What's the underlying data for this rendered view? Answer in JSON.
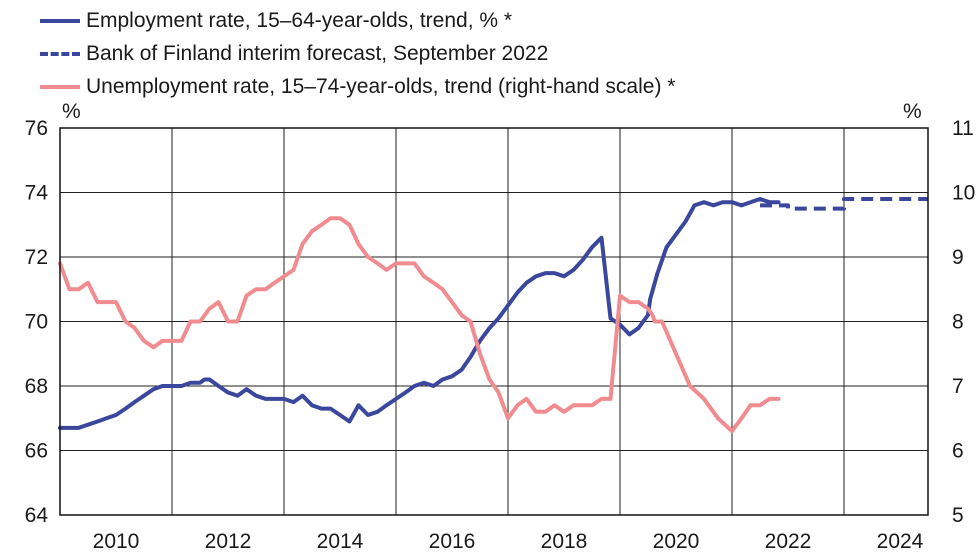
{
  "chart_data": {
    "type": "line",
    "legend": [
      {
        "label": "Employment rate, 15–64-year-olds, trend, % *",
        "color": "#3b479c",
        "style": "solid"
      },
      {
        "label": "Bank of Finland interim forecast, September 2022",
        "color": "#3b479c",
        "style": "dashed"
      },
      {
        "label": "Unemployment rate, 15–74-year-olds, trend (right-hand scale) *",
        "color": "#f08c8f",
        "style": "solid"
      }
    ],
    "left_unit": "%",
    "right_unit": "%",
    "xlim": [
      2009.5,
      2025.0
    ],
    "x_ticks": [
      "2010",
      "2012",
      "2014",
      "2016",
      "2018",
      "2020",
      "2022",
      "2024"
    ],
    "y_left_lim": [
      64,
      76
    ],
    "y_left_ticks": [
      "64",
      "66",
      "68",
      "70",
      "72",
      "74",
      "76"
    ],
    "y_right_lim": [
      5,
      11
    ],
    "y_right_ticks": [
      "5",
      "6",
      "7",
      "8",
      "9",
      "10",
      "11"
    ],
    "grid": true,
    "series": [
      {
        "name": "Employment rate, 15–64-year-olds, trend, % *",
        "axis": "left",
        "color": "#3b479c",
        "style": "solid",
        "x": [
          2009.5,
          2009.83,
          2010.0,
          2010.17,
          2010.33,
          2010.5,
          2010.67,
          2010.83,
          2011.0,
          2011.17,
          2011.33,
          2011.5,
          2011.67,
          2011.83,
          2012.0,
          2012.08,
          2012.17,
          2012.25,
          2012.33,
          2012.5,
          2012.67,
          2012.83,
          2013.0,
          2013.17,
          2013.33,
          2013.5,
          2013.67,
          2013.83,
          2014.0,
          2014.17,
          2014.33,
          2014.5,
          2014.67,
          2014.83,
          2015.0,
          2015.17,
          2015.33,
          2015.5,
          2015.67,
          2015.83,
          2016.0,
          2016.17,
          2016.33,
          2016.5,
          2016.67,
          2016.83,
          2017.0,
          2017.17,
          2017.33,
          2017.5,
          2017.67,
          2017.83,
          2018.0,
          2018.17,
          2018.33,
          2018.5,
          2018.67,
          2018.83,
          2019.0,
          2019.17,
          2019.33,
          2019.5,
          2019.67,
          2019.83,
          2020.0,
          2020.04,
          2020.17,
          2020.33,
          2020.5,
          2020.67,
          2020.83,
          2021.0,
          2021.17,
          2021.33,
          2021.5,
          2021.67,
          2021.83,
          2022.0,
          2022.17,
          2022.33
        ],
        "y": [
          66.7,
          66.7,
          66.8,
          66.9,
          67.0,
          67.1,
          67.3,
          67.5,
          67.7,
          67.9,
          68.0,
          68.0,
          68.0,
          68.1,
          68.1,
          68.2,
          68.2,
          68.1,
          68.0,
          67.8,
          67.7,
          67.9,
          67.7,
          67.6,
          67.6,
          67.6,
          67.5,
          67.7,
          67.4,
          67.3,
          67.3,
          67.1,
          66.9,
          67.4,
          67.1,
          67.2,
          67.4,
          67.6,
          67.8,
          68.0,
          68.1,
          68.0,
          68.2,
          68.3,
          68.5,
          68.9,
          69.4,
          69.8,
          70.1,
          70.5,
          70.9,
          71.2,
          71.4,
          71.5,
          71.5,
          71.4,
          71.6,
          71.9,
          72.3,
          72.6,
          70.1,
          69.9,
          69.6,
          69.8,
          70.2,
          70.7,
          71.5,
          72.3,
          72.7,
          73.1,
          73.6,
          73.7,
          73.6,
          73.7,
          73.7,
          73.6,
          73.7,
          73.8,
          73.7,
          73.7
        ]
      },
      {
        "name": "Bank of Finland interim forecast, September 2022",
        "axis": "left",
        "color": "#3b479c",
        "style": "dashed",
        "x": [
          2022.0,
          2022.5,
          2022.5,
          2023.5,
          2023.5,
          2025.0
        ],
        "y": [
          73.6,
          73.6,
          73.5,
          73.5,
          73.8,
          73.8
        ]
      },
      {
        "name": "Unemployment rate, 15–74-year-olds, trend (right-hand scale) *",
        "axis": "right",
        "color": "#f08c8f",
        "style": "solid",
        "x": [
          2009.5,
          2009.67,
          2009.83,
          2010.0,
          2010.17,
          2010.33,
          2010.5,
          2010.67,
          2010.83,
          2011.0,
          2011.17,
          2011.33,
          2011.5,
          2011.67,
          2011.83,
          2012.0,
          2012.17,
          2012.33,
          2012.5,
          2012.67,
          2012.83,
          2013.0,
          2013.17,
          2013.33,
          2013.5,
          2013.67,
          2013.83,
          2014.0,
          2014.17,
          2014.33,
          2014.5,
          2014.67,
          2014.83,
          2015.0,
          2015.17,
          2015.33,
          2015.5,
          2015.67,
          2015.83,
          2016.0,
          2016.17,
          2016.33,
          2016.5,
          2016.67,
          2016.83,
          2017.0,
          2017.17,
          2017.33,
          2017.5,
          2017.67,
          2017.83,
          2018.0,
          2018.17,
          2018.33,
          2018.5,
          2018.67,
          2018.83,
          2019.0,
          2019.17,
          2019.33,
          2019.5,
          2019.67,
          2019.83,
          2020.0,
          2020.08,
          2020.12,
          2020.25,
          2020.5,
          2020.75,
          2021.0,
          2021.25,
          2021.5,
          2021.67,
          2021.83,
          2022.0,
          2022.17,
          2022.33
        ],
        "y": [
          8.9,
          8.5,
          8.5,
          8.6,
          8.3,
          8.3,
          8.3,
          8.0,
          7.9,
          7.7,
          7.6,
          7.7,
          7.7,
          7.7,
          8.0,
          8.0,
          8.2,
          8.3,
          8.0,
          8.0,
          8.4,
          8.5,
          8.5,
          8.6,
          8.7,
          8.8,
          9.2,
          9.4,
          9.5,
          9.6,
          9.6,
          9.5,
          9.2,
          9.0,
          8.9,
          8.8,
          8.9,
          8.9,
          8.9,
          8.7,
          8.6,
          8.5,
          8.3,
          8.1,
          8.0,
          7.5,
          7.1,
          6.9,
          6.5,
          6.7,
          6.8,
          6.6,
          6.6,
          6.7,
          6.6,
          6.7,
          6.7,
          6.7,
          6.8,
          6.8,
          8.4,
          8.3,
          8.3,
          8.2,
          8.1,
          8.0,
          8.0,
          7.5,
          7.0,
          6.8,
          6.5,
          6.3,
          6.5,
          6.7,
          6.7,
          6.8,
          6.8
        ]
      }
    ]
  }
}
